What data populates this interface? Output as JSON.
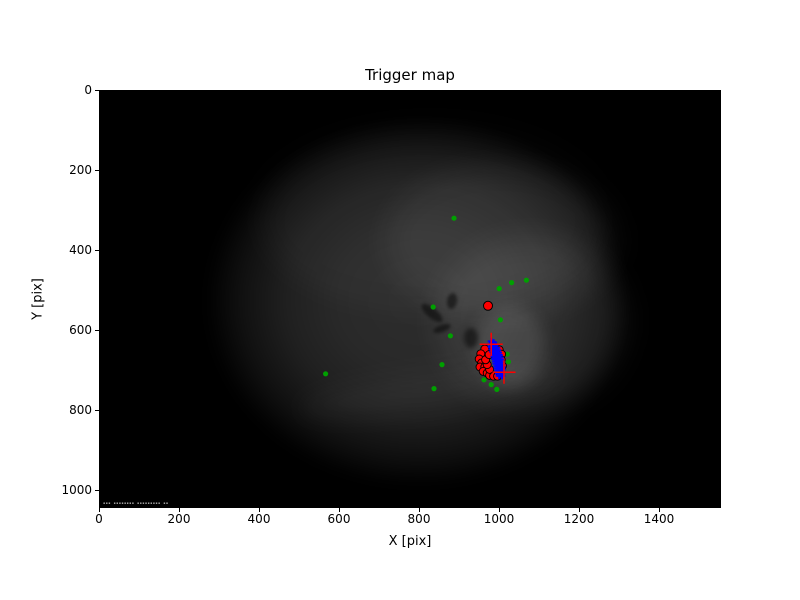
{
  "figure": {
    "title": "Trigger map",
    "xlabel": "X [pix]",
    "ylabel": "Y [pix]"
  },
  "image_overlay": {
    "timestamp_text": "▪▪▪ ▪▪▪▪▪▪▪▪  ▪▪▪▪▪▪▪▪▪ ▪▪"
  },
  "chart_data": {
    "type": "scatter",
    "title": "Trigger map",
    "xlabel": "X [pix]",
    "ylabel": "Y [pix]",
    "xlim": [
      0,
      1550
    ],
    "ylim": [
      0,
      1040
    ],
    "y_axis_inverted": true,
    "xticks": [
      0,
      200,
      400,
      600,
      800,
      1000,
      1200,
      1400
    ],
    "yticks": [
      0,
      200,
      400,
      600,
      800,
      1000
    ],
    "grid": false,
    "background": "all-sky fisheye camera frame: black border, dark gray circular field of view with brighter cloud patches right of center and a tiny white timestamp strip at bottom left",
    "colors": {
      "green": "#00a000",
      "red": "#ff0000",
      "blue": "#0000ff",
      "marker_edge": "#000000"
    },
    "series": [
      {
        "name": "green-dots",
        "marker": "circle",
        "color": "#00a000",
        "size": 5.2,
        "points": [
          [
            885,
            318
          ],
          [
            998,
            494
          ],
          [
            1029,
            479
          ],
          [
            1066,
            473
          ],
          [
            833,
            540
          ],
          [
            1001,
            572
          ],
          [
            876,
            612
          ],
          [
            1018,
            658
          ],
          [
            1021,
            677
          ],
          [
            855,
            684
          ],
          [
            564,
            707
          ],
          [
            960,
            722
          ],
          [
            835,
            744
          ],
          [
            978,
            734
          ],
          [
            992,
            746
          ]
        ]
      },
      {
        "name": "red-circles",
        "marker": "circle",
        "color": "#ff0000",
        "edge": "#000000",
        "edge_width": 0.9,
        "size": 8,
        "points": [
          [
            962,
            645
          ],
          [
            952,
            657
          ],
          [
            948,
            670
          ],
          [
            954,
            680
          ],
          [
            950,
            690
          ],
          [
            962,
            690
          ],
          [
            958,
            701
          ],
          [
            968,
            705
          ],
          [
            974,
            711
          ],
          [
            984,
            713
          ],
          [
            994,
            713
          ],
          [
            1001,
            705
          ],
          [
            974,
            696
          ],
          [
            968,
            684
          ],
          [
            964,
            672
          ],
          [
            973,
            659
          ],
          [
            984,
            648
          ],
          [
            998,
            647
          ],
          [
            1004,
            658
          ],
          [
            1003,
            672
          ],
          [
            1006,
            687
          ]
        ]
      },
      {
        "name": "blue-plus-markers",
        "marker": "plus",
        "color": "#0000ff",
        "size": 7,
        "stroke_width": 2,
        "points": [
          [
            978,
            626
          ],
          [
            984,
            629
          ],
          [
            975,
            633
          ],
          [
            981,
            636
          ],
          [
            988,
            634
          ],
          [
            978,
            640
          ],
          [
            985,
            641
          ],
          [
            992,
            642
          ],
          [
            980,
            646
          ],
          [
            987,
            647
          ],
          [
            994,
            648
          ],
          [
            982,
            652
          ],
          [
            989,
            653
          ],
          [
            996,
            654
          ],
          [
            984,
            658
          ],
          [
            991,
            659
          ],
          [
            998,
            660
          ],
          [
            985,
            664
          ],
          [
            993,
            665
          ],
          [
            1000,
            666
          ],
          [
            987,
            670
          ],
          [
            994,
            671
          ],
          [
            1001,
            672
          ],
          [
            989,
            676
          ],
          [
            996,
            677
          ],
          [
            1003,
            678
          ],
          [
            990,
            682
          ],
          [
            997,
            683
          ],
          [
            1004,
            684
          ],
          [
            992,
            688
          ],
          [
            999,
            689
          ],
          [
            1005,
            690
          ],
          [
            993,
            694
          ],
          [
            1000,
            695
          ],
          [
            1006,
            696
          ],
          [
            995,
            700
          ],
          [
            1002,
            701
          ],
          [
            996,
            706
          ],
          [
            1003,
            707
          ],
          [
            998,
            712
          ],
          [
            1005,
            712
          ]
        ]
      },
      {
        "name": "red-crosshairs",
        "marker": "plus",
        "color": "#ff0000",
        "size": 23,
        "stroke_width": 1.5,
        "points": [
          [
            978,
            633
          ],
          [
            1010,
            703
          ]
        ]
      },
      {
        "name": "red-dot-isolated",
        "marker": "circle",
        "color": "#ff0000",
        "edge": "#000000",
        "edge_width": 1,
        "size": 9,
        "points": [
          [
            970,
            537
          ]
        ]
      }
    ]
  }
}
